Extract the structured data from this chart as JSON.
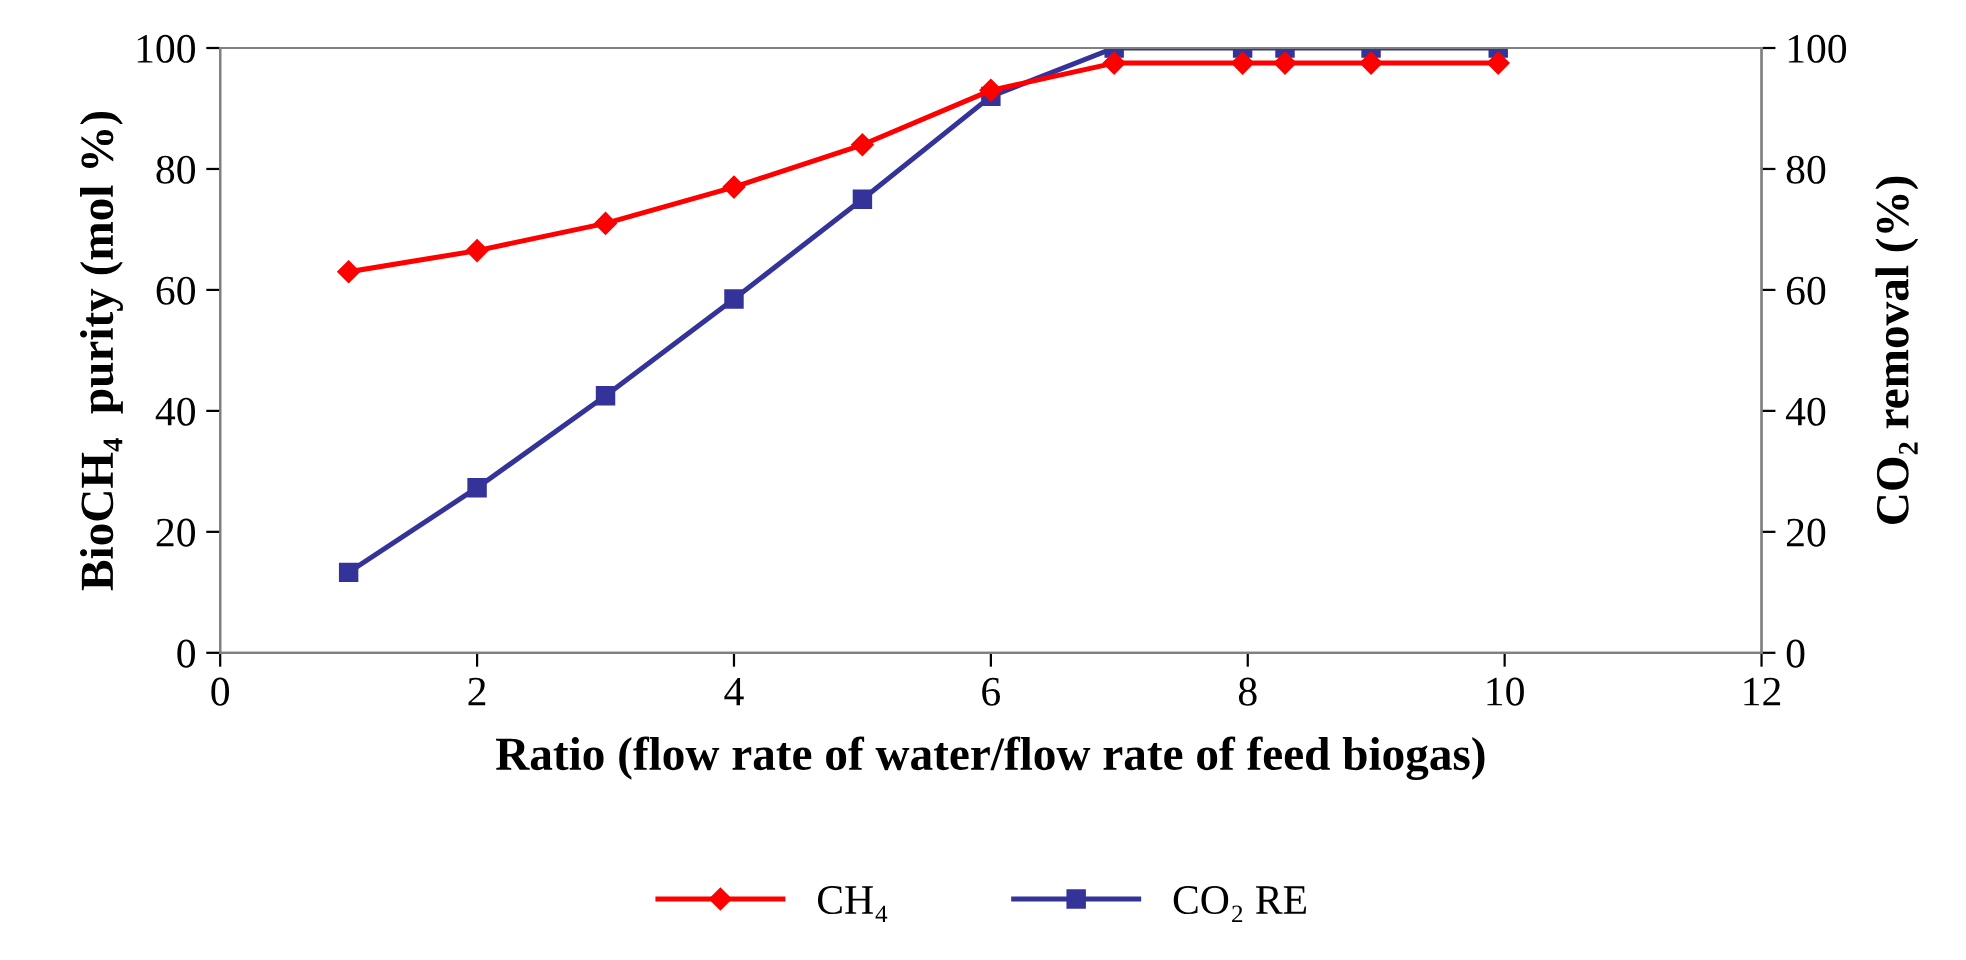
{
  "chart_data": {
    "type": "line",
    "xlabel": "Ratio (flow rate of water/flow rate of feed biogas)",
    "ylabel": "BioCH₄  purity (mol %)",
    "y2label": "CO₂ removal (%)",
    "xlim": [
      0,
      12
    ],
    "xticks": [
      0,
      2,
      4,
      6,
      8,
      10,
      12
    ],
    "ylim": [
      0,
      100
    ],
    "yticks": [
      0,
      20,
      40,
      60,
      80,
      100
    ],
    "y2lim": [
      0,
      100
    ],
    "y2ticks": [
      0,
      20,
      40,
      60,
      80,
      100
    ],
    "grid": false,
    "legend": "bottom",
    "line_style": "solid",
    "series": [
      {
        "name": "CH₄",
        "color": "#ff0000",
        "marker": "diamond",
        "axis": "y",
        "x": [
          1,
          2,
          3,
          4,
          5,
          6,
          6.96,
          7.96,
          8.29,
          8.96,
          9.95
        ],
        "values": [
          63,
          66.5,
          71,
          77,
          84,
          93,
          97.5,
          97.5,
          97.5,
          97.5,
          97.5
        ]
      },
      {
        "name": "CO₂ RE",
        "color": "#333399",
        "marker": "square",
        "axis": "y2",
        "x": [
          1,
          2,
          3,
          4,
          5,
          6,
          6.96,
          7.96,
          8.29,
          8.96,
          9.95
        ],
        "values": [
          13.3,
          27.3,
          42.5,
          58.5,
          75,
          92,
          100,
          100,
          100,
          100,
          100
        ]
      }
    ]
  }
}
